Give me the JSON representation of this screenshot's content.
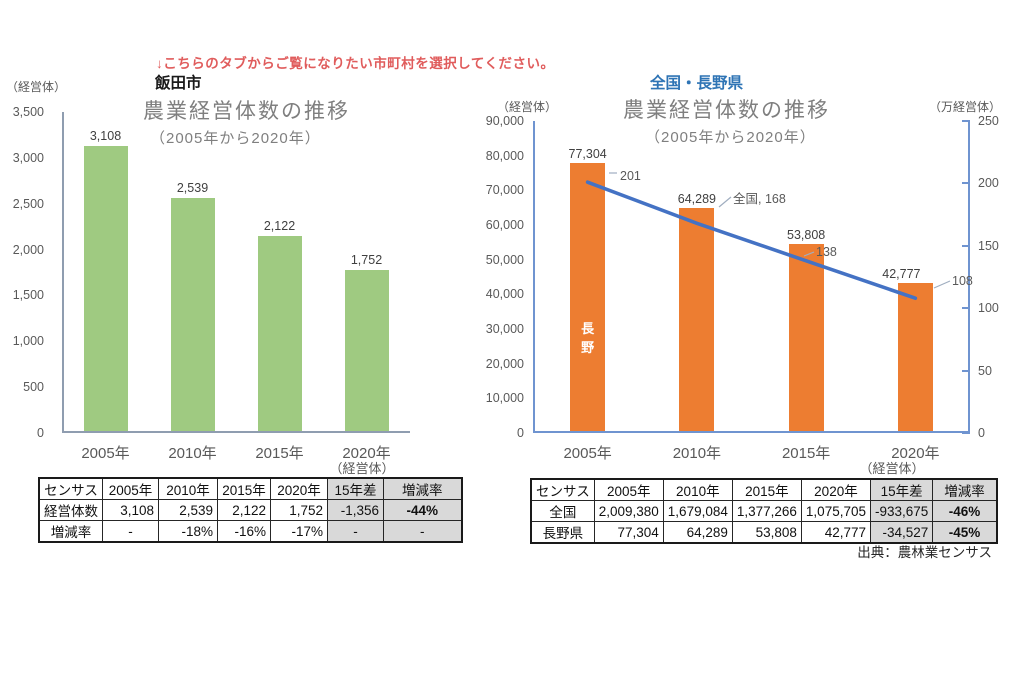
{
  "note_top": {
    "text": "↓こちらのタブからご覧になりたい市町村を選択してください。",
    "color": "#e05c5c"
  },
  "source": "出典：農林業センサス",
  "colors": {
    "bar_green": "#9fca81",
    "bar_orange": "#ED7D31",
    "line_blue": "#4472C4",
    "left_chart_axis": "#8f9db0",
    "right_chart_axis": "#6f94d0",
    "title_gray": "#7f7f7f",
    "heading_blue": "#2e74b5",
    "table_gray_fill": "#d9d9d9",
    "negative_red": "#e05555",
    "leader_gray": "#a0aec0"
  },
  "chart_data": [
    {
      "type": "bar",
      "region_label": "飯田市",
      "title": "農業経営体数の推移",
      "subtitle": "（2005年から2020年）",
      "unit_label": "（経営体）",
      "axis_unit_label": "（経営体）",
      "categories": [
        "2005年",
        "2010年",
        "2015年",
        "2020年"
      ],
      "values": [
        3108,
        2539,
        2122,
        1752
      ],
      "value_labels": [
        "3,108",
        "2,539",
        "2,122",
        "1,752"
      ],
      "ylim": [
        0,
        3500
      ],
      "ytick_step": 500,
      "ytick_labels": [
        "0",
        "500",
        "1,000",
        "1,500",
        "2,000",
        "2,500",
        "3,000",
        "3,500"
      ],
      "grid": false,
      "legend": "none"
    },
    {
      "type": "bar+line",
      "region_label": "全国・長野県",
      "title": "農業経営体数の推移",
      "subtitle": "（2005年から2020年）",
      "left_unit_label": "（経営体）",
      "right_unit_label": "（万経営体）",
      "axis_unit_label": "（経営体）",
      "categories": [
        "2005年",
        "2010年",
        "2015年",
        "2020年"
      ],
      "left_ylim": [
        0,
        90000
      ],
      "left_ytick_labels": [
        "0",
        "10,000",
        "20,000",
        "30,000",
        "40,000",
        "50,000",
        "60,000",
        "70,000",
        "80,000",
        "90,000"
      ],
      "right_ylim": [
        0,
        250
      ],
      "right_ytick_labels": [
        "0",
        "50",
        "100",
        "150",
        "200",
        "250"
      ],
      "series": [
        {
          "name": "長野",
          "type": "bar",
          "axis": "left",
          "values": [
            77304,
            64289,
            53808,
            42777
          ],
          "value_labels": [
            "77,304",
            "64,289",
            "53,808",
            "42,777"
          ],
          "in_bar_label": "長野"
        },
        {
          "name": "全国",
          "type": "line",
          "axis": "right",
          "values": [
            201,
            168,
            138,
            108
          ],
          "point_labels": [
            "201",
            "全国, 168",
            "138",
            "108"
          ]
        }
      ],
      "grid": false,
      "legend": "none"
    }
  ],
  "left_table": {
    "columns": [
      "センサス",
      "2005年",
      "2010年",
      "2015年",
      "2020年",
      "15年差",
      "増減率"
    ],
    "rows": [
      {
        "label": "経営体数",
        "cells": [
          "3,108",
          "2,539",
          "2,122",
          "1,752",
          "-1,356",
          "-44%"
        ]
      },
      {
        "label": "増減率",
        "cells": [
          "-",
          "-18%",
          "-16%",
          "-17%",
          "-",
          "-"
        ]
      }
    ]
  },
  "right_table": {
    "columns": [
      "センサス",
      "2005年",
      "2010年",
      "2015年",
      "2020年",
      "15年差",
      "増減率"
    ],
    "rows": [
      {
        "label": "全国",
        "cells": [
          "2,009,380",
          "1,679,084",
          "1,377,266",
          "1,075,705",
          "-933,675",
          "-46%"
        ]
      },
      {
        "label": "長野県",
        "cells": [
          "77,304",
          "64,289",
          "53,808",
          "42,777",
          "-34,527",
          "-45%"
        ]
      }
    ]
  }
}
